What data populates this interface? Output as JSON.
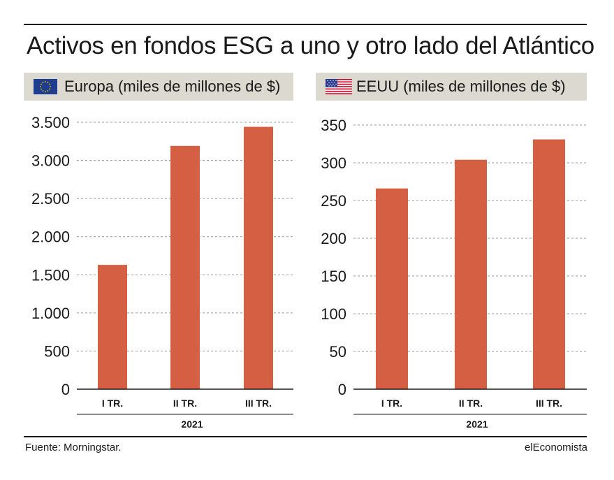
{
  "title": "Activos en fondos ESG a uno y otro lado del Atlántico",
  "source": "Fuente: Morningstar.",
  "brand": "elEconomista",
  "colors": {
    "bar": "#d45f42",
    "header_bg": "#dcdad0",
    "grid": "#9a9a9a"
  },
  "chart_data": [
    {
      "type": "bar",
      "title": "Europa (miles de millones de $)",
      "flag_icon": "eu-flag-icon",
      "categories": [
        "I TR.",
        "II TR.",
        "III TR."
      ],
      "group_label": "2021",
      "values": [
        1630,
        3190,
        3440
      ],
      "ylim": [
        0,
        3500
      ],
      "yticks": [
        0,
        500,
        1000,
        1500,
        2000,
        2500,
        3000,
        3500
      ],
      "ytick_labels": [
        "0",
        "500",
        "1.000",
        "1.500",
        "2.000",
        "2.500",
        "3.000",
        "3.500"
      ],
      "grid": true
    },
    {
      "type": "bar",
      "title": "EEUU (miles de millones de $)",
      "flag_icon": "us-flag-icon",
      "categories": [
        "I TR.",
        "II TR.",
        "III TR."
      ],
      "group_label": "2021",
      "values": [
        266,
        304,
        331
      ],
      "ylim": [
        0,
        350
      ],
      "yticks": [
        0,
        50,
        100,
        150,
        200,
        250,
        300,
        350
      ],
      "ytick_labels": [
        "0",
        "50",
        "100",
        "150",
        "200",
        "250",
        "300",
        "350"
      ],
      "grid": true
    }
  ]
}
